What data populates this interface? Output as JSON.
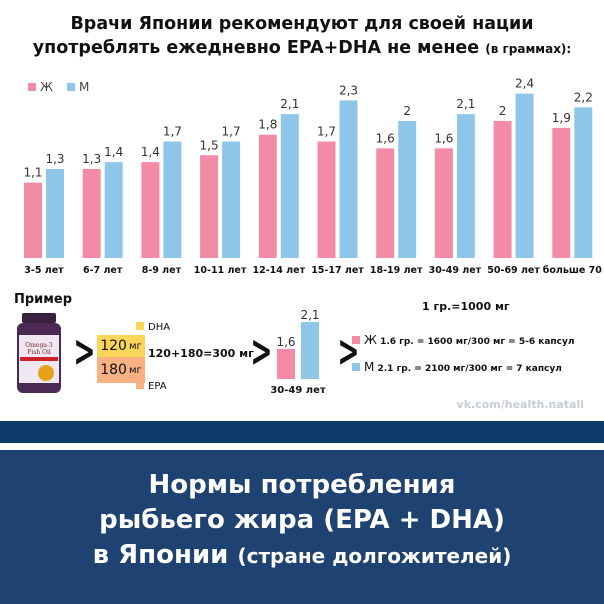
{
  "title": {
    "line1": "Врачи Японии рекомендуют для своей нации",
    "line2": "употреблять ежедневно EPA+DHA не менее",
    "unit": "(в граммах):"
  },
  "colors": {
    "female": "#f48ba6",
    "male": "#8dc6e8",
    "navy": "#0b3a6b",
    "dha": "#fbd45a",
    "epa": "#f9b083"
  },
  "chart_data": {
    "type": "bar",
    "categories": [
      "3-5 лет",
      "6-7 лет",
      "8-9 лет",
      "10-11 лет",
      "12-14 лет",
      "15-17 лет",
      "18-19 лет",
      "30-49 лет",
      "50-69 лет",
      "больше 70"
    ],
    "series": [
      {
        "name": "Ж",
        "values": [
          1.1,
          1.3,
          1.4,
          1.5,
          1.8,
          1.7,
          1.6,
          1.6,
          2,
          1.9
        ]
      },
      {
        "name": "М",
        "values": [
          1.3,
          1.4,
          1.7,
          1.7,
          2.1,
          2.3,
          2,
          2.1,
          2.4,
          2.2
        ]
      }
    ],
    "value_labels": {
      "Ж": [
        "1,1",
        "1,3",
        "1,4",
        "1,5",
        "1,8",
        "1,7",
        "1,6",
        "1,6",
        "2",
        "1,9"
      ],
      "М": [
        "1,3",
        "1,4",
        "1,7",
        "1,7",
        "2,1",
        "2,3",
        "2",
        "2,1",
        "2,4",
        "2,2"
      ]
    },
    "ylim": [
      0,
      2.4
    ],
    "grid": false,
    "legend": "top-left"
  },
  "legend": {
    "female": "Ж",
    "male": "М"
  },
  "example": {
    "label": "Пример",
    "dha_label": "DHA",
    "epa_label": "EPA",
    "dha_value": "120",
    "epa_value": "180",
    "mg": "мг",
    "sum": "120+180=300 мг",
    "mini_category": "30-49 лет",
    "mini_f": "1,6",
    "mini_m": "2,1",
    "conversion": "1 гр.=1000 мг",
    "female_letter": "Ж",
    "female_calc": "1.6 гр. = 1600 мг/300 мг = 5-6 капсул",
    "male_letter": "М",
    "male_calc": "2.1 гр. = 2100 мг/300 мг = 7 капсул",
    "bottle_text": "Omega-3 Fish Oil"
  },
  "url": "vk.com/health.natali",
  "banner": {
    "line1": "Нормы потребления",
    "line2": "рыбьего жира (EPA + DHA)",
    "line3a": "в Японии",
    "line3b": "(стране долгожителей)"
  }
}
